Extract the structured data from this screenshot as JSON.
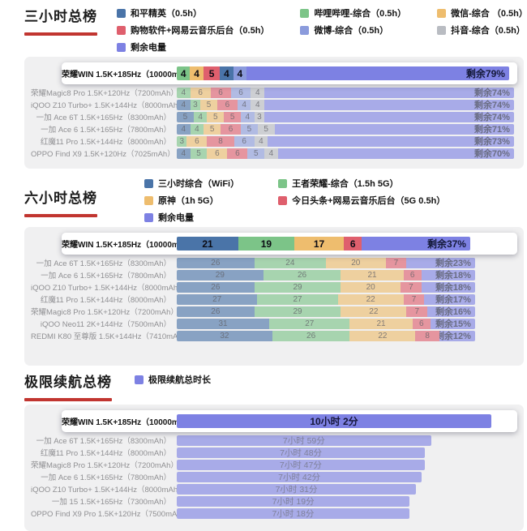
{
  "colors": {
    "blue": "#4a74a8",
    "green": "#7cc488",
    "orange": "#eebd6e",
    "red": "#df5f6d",
    "lightblue": "#8b9bdc",
    "gray": "#b9bcc2",
    "purple": "#7d81e3"
  },
  "chart_data": [
    {
      "type": "bar",
      "subtype": "stacked-horizontal-percent",
      "title": "三小时总榜",
      "x_max": 100,
      "unit": "% 电量",
      "legend_columns": [
        [
          {
            "label": "和平精英（0.5h）",
            "color": "blue"
          },
          {
            "label": "购物软件+网易云音乐后台（0.5h）",
            "color": "red"
          },
          {
            "label": "剩余电量",
            "color": "purple"
          }
        ],
        [
          {
            "label": "哔哩哔哩-综合（0.5h）",
            "color": "green"
          },
          {
            "label": "微博-综合（0.5h）",
            "color": "lightblue"
          }
        ],
        [
          {
            "label": "微信-综合 （0.5h）",
            "color": "orange"
          },
          {
            "label": "抖音-综合（0.5h）",
            "color": "gray"
          }
        ]
      ],
      "rows": [
        {
          "label": "荣耀WIN 1.5K+185Hz（10000mAh）",
          "highlight": true,
          "segments": [
            {
              "value": 4,
              "color": "green"
            },
            {
              "value": 4,
              "color": "orange"
            },
            {
              "value": 5,
              "color": "red"
            },
            {
              "value": 4,
              "color": "blue"
            },
            {
              "value": 4,
              "color": "lightblue"
            }
          ],
          "remaining": {
            "value": 79,
            "label": "剩余79%"
          }
        },
        {
          "label": "荣耀Magic8 Pro 1.5K+120Hz（7200mAh）",
          "highlight": false,
          "segments": [
            {
              "value": 4,
              "color": "green"
            },
            {
              "value": 6,
              "color": "orange"
            },
            {
              "value": 6,
              "color": "red"
            },
            {
              "value": 6,
              "color": "lightblue"
            },
            {
              "value": 4,
              "color": "gray"
            }
          ],
          "remaining": {
            "value": 74,
            "label": "剩余74%"
          }
        },
        {
          "label": "iQOO Z10 Turbo+ 1.5K+144Hz（8000mAh）",
          "highlight": false,
          "segments": [
            {
              "value": 4,
              "color": "blue"
            },
            {
              "value": 3,
              "color": "green"
            },
            {
              "value": 5,
              "color": "orange"
            },
            {
              "value": 6,
              "color": "red"
            },
            {
              "value": 4,
              "color": "lightblue"
            },
            {
              "value": 4,
              "color": "gray"
            }
          ],
          "remaining": {
            "value": 74,
            "label": "剩余74%"
          }
        },
        {
          "label": "一加 Ace 6T 1.5K+165Hz（8300mAh）",
          "highlight": false,
          "segments": [
            {
              "value": 5,
              "color": "blue"
            },
            {
              "value": 4,
              "color": "green"
            },
            {
              "value": 5,
              "color": "orange"
            },
            {
              "value": 5,
              "color": "red"
            },
            {
              "value": 4,
              "color": "lightblue"
            },
            {
              "value": 3,
              "color": "gray"
            }
          ],
          "remaining": {
            "value": 74,
            "label": "剩余74%"
          }
        },
        {
          "label": "一加 Ace 6 1.5K+165Hz（7800mAh）",
          "highlight": false,
          "segments": [
            {
              "value": 4,
              "color": "blue"
            },
            {
              "value": 4,
              "color": "green"
            },
            {
              "value": 5,
              "color": "orange"
            },
            {
              "value": 6,
              "color": "red"
            },
            {
              "value": 5,
              "color": "lightblue"
            },
            {
              "value": 5,
              "color": "gray"
            }
          ],
          "remaining": {
            "value": 71,
            "label": "剩余71%"
          }
        },
        {
          "label": "红魔11 Pro 1.5K+144Hz（8000mAh）",
          "highlight": false,
          "segments": [
            {
              "value": 3,
              "color": "green"
            },
            {
              "value": 6,
              "color": "orange"
            },
            {
              "value": 8,
              "color": "red"
            },
            {
              "value": 6,
              "color": "lightblue"
            },
            {
              "value": 4,
              "color": "gray"
            }
          ],
          "remaining": {
            "value": 73,
            "label": "剩余73%"
          }
        },
        {
          "label": "OPPO Find X9 1.5K+120Hz（7025mAh）",
          "highlight": false,
          "segments": [
            {
              "value": 4,
              "color": "blue"
            },
            {
              "value": 5,
              "color": "green"
            },
            {
              "value": 6,
              "color": "orange"
            },
            {
              "value": 6,
              "color": "red"
            },
            {
              "value": 5,
              "color": "lightblue"
            },
            {
              "value": 4,
              "color": "gray"
            }
          ],
          "remaining": {
            "value": 70,
            "label": "剩余70%"
          }
        }
      ]
    },
    {
      "type": "bar",
      "subtype": "stacked-horizontal-percent",
      "title": "六小时总榜",
      "x_max": 100,
      "unit": "% 电量",
      "legend_columns": [
        [
          {
            "label": "三小时综合（WiFi）",
            "color": "blue"
          },
          {
            "label": "原神（1h 5G）",
            "color": "orange"
          },
          {
            "label": "剩余电量",
            "color": "purple"
          }
        ],
        [
          {
            "label": "王者荣耀-综合（1.5h 5G）",
            "color": "green"
          },
          {
            "label": "今日头条+网易云音乐后台（5G 0.5h）",
            "color": "red"
          }
        ]
      ],
      "rows": [
        {
          "label": "荣耀WIN 1.5K+185Hz（10000mAh）",
          "highlight": true,
          "segments": [
            {
              "value": 21,
              "color": "blue"
            },
            {
              "value": 19,
              "color": "green"
            },
            {
              "value": 17,
              "color": "orange"
            },
            {
              "value": 6,
              "color": "red"
            }
          ],
          "remaining": {
            "value": 37,
            "label": "剩余37%"
          }
        },
        {
          "label": "一加 Ace 6T 1.5K+165Hz（8300mAh）",
          "highlight": false,
          "segments": [
            {
              "value": 26,
              "color": "blue"
            },
            {
              "value": 24,
              "color": "green"
            },
            {
              "value": 20,
              "color": "orange"
            },
            {
              "value": 7,
              "color": "red"
            }
          ],
          "remaining": {
            "value": 23,
            "label": "剩余23%"
          }
        },
        {
          "label": "一加 Ace 6 1.5K+165Hz（7800mAh）",
          "highlight": false,
          "segments": [
            {
              "value": 29,
              "color": "blue"
            },
            {
              "value": 26,
              "color": "green"
            },
            {
              "value": 21,
              "color": "orange"
            },
            {
              "value": 6,
              "color": "red"
            }
          ],
          "remaining": {
            "value": 18,
            "label": "剩余18%"
          }
        },
        {
          "label": "iQOO Z10 Turbo+ 1.5K+144Hz（8000mAh）",
          "highlight": false,
          "segments": [
            {
              "value": 26,
              "color": "blue"
            },
            {
              "value": 29,
              "color": "green"
            },
            {
              "value": 20,
              "color": "orange"
            },
            {
              "value": 7,
              "color": "red"
            }
          ],
          "remaining": {
            "value": 18,
            "label": "剩余18%"
          }
        },
        {
          "label": "红魔11 Pro 1.5K+144Hz（8000mAh）",
          "highlight": false,
          "segments": [
            {
              "value": 27,
              "color": "blue"
            },
            {
              "value": 27,
              "color": "green"
            },
            {
              "value": 22,
              "color": "orange"
            },
            {
              "value": 7,
              "color": "red"
            }
          ],
          "remaining": {
            "value": 17,
            "label": "剩余17%"
          }
        },
        {
          "label": "荣耀Magic8 Pro 1.5K+120Hz（7200mAh）",
          "highlight": false,
          "segments": [
            {
              "value": 26,
              "color": "blue"
            },
            {
              "value": 29,
              "color": "green"
            },
            {
              "value": 22,
              "color": "orange"
            },
            {
              "value": 7,
              "color": "red"
            }
          ],
          "remaining": {
            "value": 16,
            "label": "剩余16%"
          }
        },
        {
          "label": "iQOO Neo11 2K+144Hz（7500mAh）",
          "highlight": false,
          "segments": [
            {
              "value": 31,
              "color": "blue"
            },
            {
              "value": 27,
              "color": "green"
            },
            {
              "value": 21,
              "color": "orange"
            },
            {
              "value": 6,
              "color": "red"
            }
          ],
          "remaining": {
            "value": 15,
            "label": "剩余15%"
          }
        },
        {
          "label": "REDMI K80 至尊版 1.5K+144Hz（7410mAh）",
          "highlight": false,
          "segments": [
            {
              "value": 32,
              "color": "blue"
            },
            {
              "value": 26,
              "color": "green"
            },
            {
              "value": 22,
              "color": "orange"
            },
            {
              "value": 8,
              "color": "red"
            }
          ],
          "remaining": {
            "value": 12,
            "label": "剩余12%"
          }
        }
      ]
    },
    {
      "type": "bar",
      "subtype": "horizontal-duration",
      "title": "极限续航总榜",
      "x_max_minutes": 602,
      "legend_columns": [
        [
          {
            "label": "极限续航总时长",
            "color": "purple"
          }
        ]
      ],
      "rows": [
        {
          "label": "荣耀WIN 1.5K+185Hz（10000mAh）",
          "highlight": true,
          "value_label": "10小时 2分",
          "minutes": 602,
          "width_pct": 100
        },
        {
          "label": "一加 Ace 6T 1.5K+165Hz（8300mAh）",
          "highlight": false,
          "value_label": "7小时 59分",
          "minutes": 479,
          "width_pct": 79.6
        },
        {
          "label": "红魔11 Pro 1.5K+144Hz（8000mAh）",
          "highlight": false,
          "value_label": "7小时 48分",
          "minutes": 468,
          "width_pct": 77.7
        },
        {
          "label": "荣耀Magic8 Pro 1.5K+120Hz（7200mAh）",
          "highlight": false,
          "value_label": "7小时 47分",
          "minutes": 467,
          "width_pct": 77.6
        },
        {
          "label": "一加 Ace 6 1.5K+165Hz（7800mAh）",
          "highlight": false,
          "value_label": "7小时 42分",
          "minutes": 462,
          "width_pct": 76.7
        },
        {
          "label": "iQOO Z10 Turbo+ 1.5K+144Hz（8000mAh）",
          "highlight": false,
          "value_label": "7小时 31分",
          "minutes": 451,
          "width_pct": 74.9
        },
        {
          "label": "一加 15 1.5K+165Hz（7300mAh）",
          "highlight": false,
          "value_label": "7小时 19分",
          "minutes": 439,
          "width_pct": 72.9
        },
        {
          "label": "OPPO Find X9 Pro 1.5K+120Hz（7500mAh）",
          "highlight": false,
          "value_label": "7小时 18分",
          "minutes": 438,
          "width_pct": 72.8
        }
      ]
    }
  ]
}
